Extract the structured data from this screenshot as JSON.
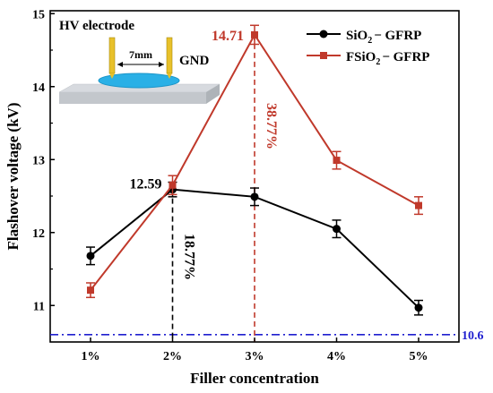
{
  "chart_data": {
    "type": "line",
    "xlabel": "Filler concentration",
    "ylabel": "Flashover voltage (kV)",
    "categories": [
      "1%",
      "2%",
      "3%",
      "4%",
      "5%"
    ],
    "ylim": [
      10.5,
      15
    ],
    "yticks": [
      11,
      12,
      13,
      14,
      15
    ],
    "series": [
      {
        "name": "SiO₂− GFRP",
        "name_main": "SiO",
        "name_sub": "2",
        "name_rest": "− GFRP",
        "color": "#000000",
        "marker": "circle",
        "values": [
          11.68,
          12.59,
          12.49,
          12.05,
          10.97
        ],
        "errors": [
          0.12,
          0.1,
          0.12,
          0.12,
          0.1
        ]
      },
      {
        "name": "FSiO₂− GFRP",
        "name_main": "FSiO",
        "name_sub": "2",
        "name_rest": "− GFRP",
        "color": "#c0392b",
        "marker": "square",
        "values": [
          11.21,
          12.65,
          14.71,
          12.99,
          12.37
        ],
        "errors": [
          0.1,
          0.13,
          0.13,
          0.12,
          0.12
        ]
      }
    ],
    "reference_line": {
      "value": 10.6,
      "label": "10.6",
      "color": "#1f1fcf"
    },
    "annotations": [
      {
        "text": "12.59",
        "color": "#000000"
      },
      {
        "text": "14.71",
        "color": "#c0392b"
      },
      {
        "text": "18.77%",
        "color": "#000000"
      },
      {
        "text": "38.77%",
        "color": "#c0392b"
      }
    ],
    "legend_position": "top-right",
    "inset": {
      "title": "HV electrode",
      "gap_label": "7mm",
      "ground_label": "GND"
    }
  }
}
